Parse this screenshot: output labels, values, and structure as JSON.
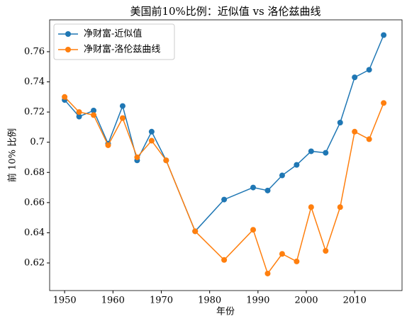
{
  "chart_data": {
    "type": "line",
    "title": "美国前10%比例：近似值 vs 洛伦兹曲线",
    "x_label": "年份",
    "y_label": "前 10% 比例",
    "x": [
      1950,
      1953,
      1956,
      1959,
      1962,
      1965,
      1968,
      1971,
      1977,
      1983,
      1989,
      1992,
      1995,
      1998,
      2001,
      2004,
      2007,
      2010,
      2013,
      2016
    ],
    "series": [
      {
        "name": "净财富-近似值",
        "color": "#1f77b4",
        "values": [
          0.728,
          0.717,
          0.721,
          0.699,
          0.724,
          0.688,
          0.707,
          0.688,
          0.641,
          0.662,
          0.67,
          0.668,
          0.678,
          0.685,
          0.694,
          0.693,
          0.713,
          0.743,
          0.748,
          0.771
        ]
      },
      {
        "name": "净财富-洛伦兹曲线",
        "color": "#ff7f0e",
        "values": [
          0.73,
          0.72,
          0.718,
          0.698,
          0.716,
          0.69,
          0.701,
          0.688,
          0.641,
          0.622,
          0.642,
          0.613,
          0.626,
          0.621,
          0.657,
          0.628,
          0.657,
          0.707,
          0.702,
          0.726
        ]
      }
    ],
    "xlim": [
      1946.9,
      2019.8
    ],
    "ylim": [
      0.6017,
      0.7811
    ],
    "xticks": [
      1950,
      1960,
      1970,
      1980,
      1990,
      2000,
      2010
    ],
    "yticks": [
      0.62,
      0.64,
      0.66,
      0.68,
      0.7,
      0.72,
      0.74,
      0.76
    ],
    "legend": "upper left"
  }
}
